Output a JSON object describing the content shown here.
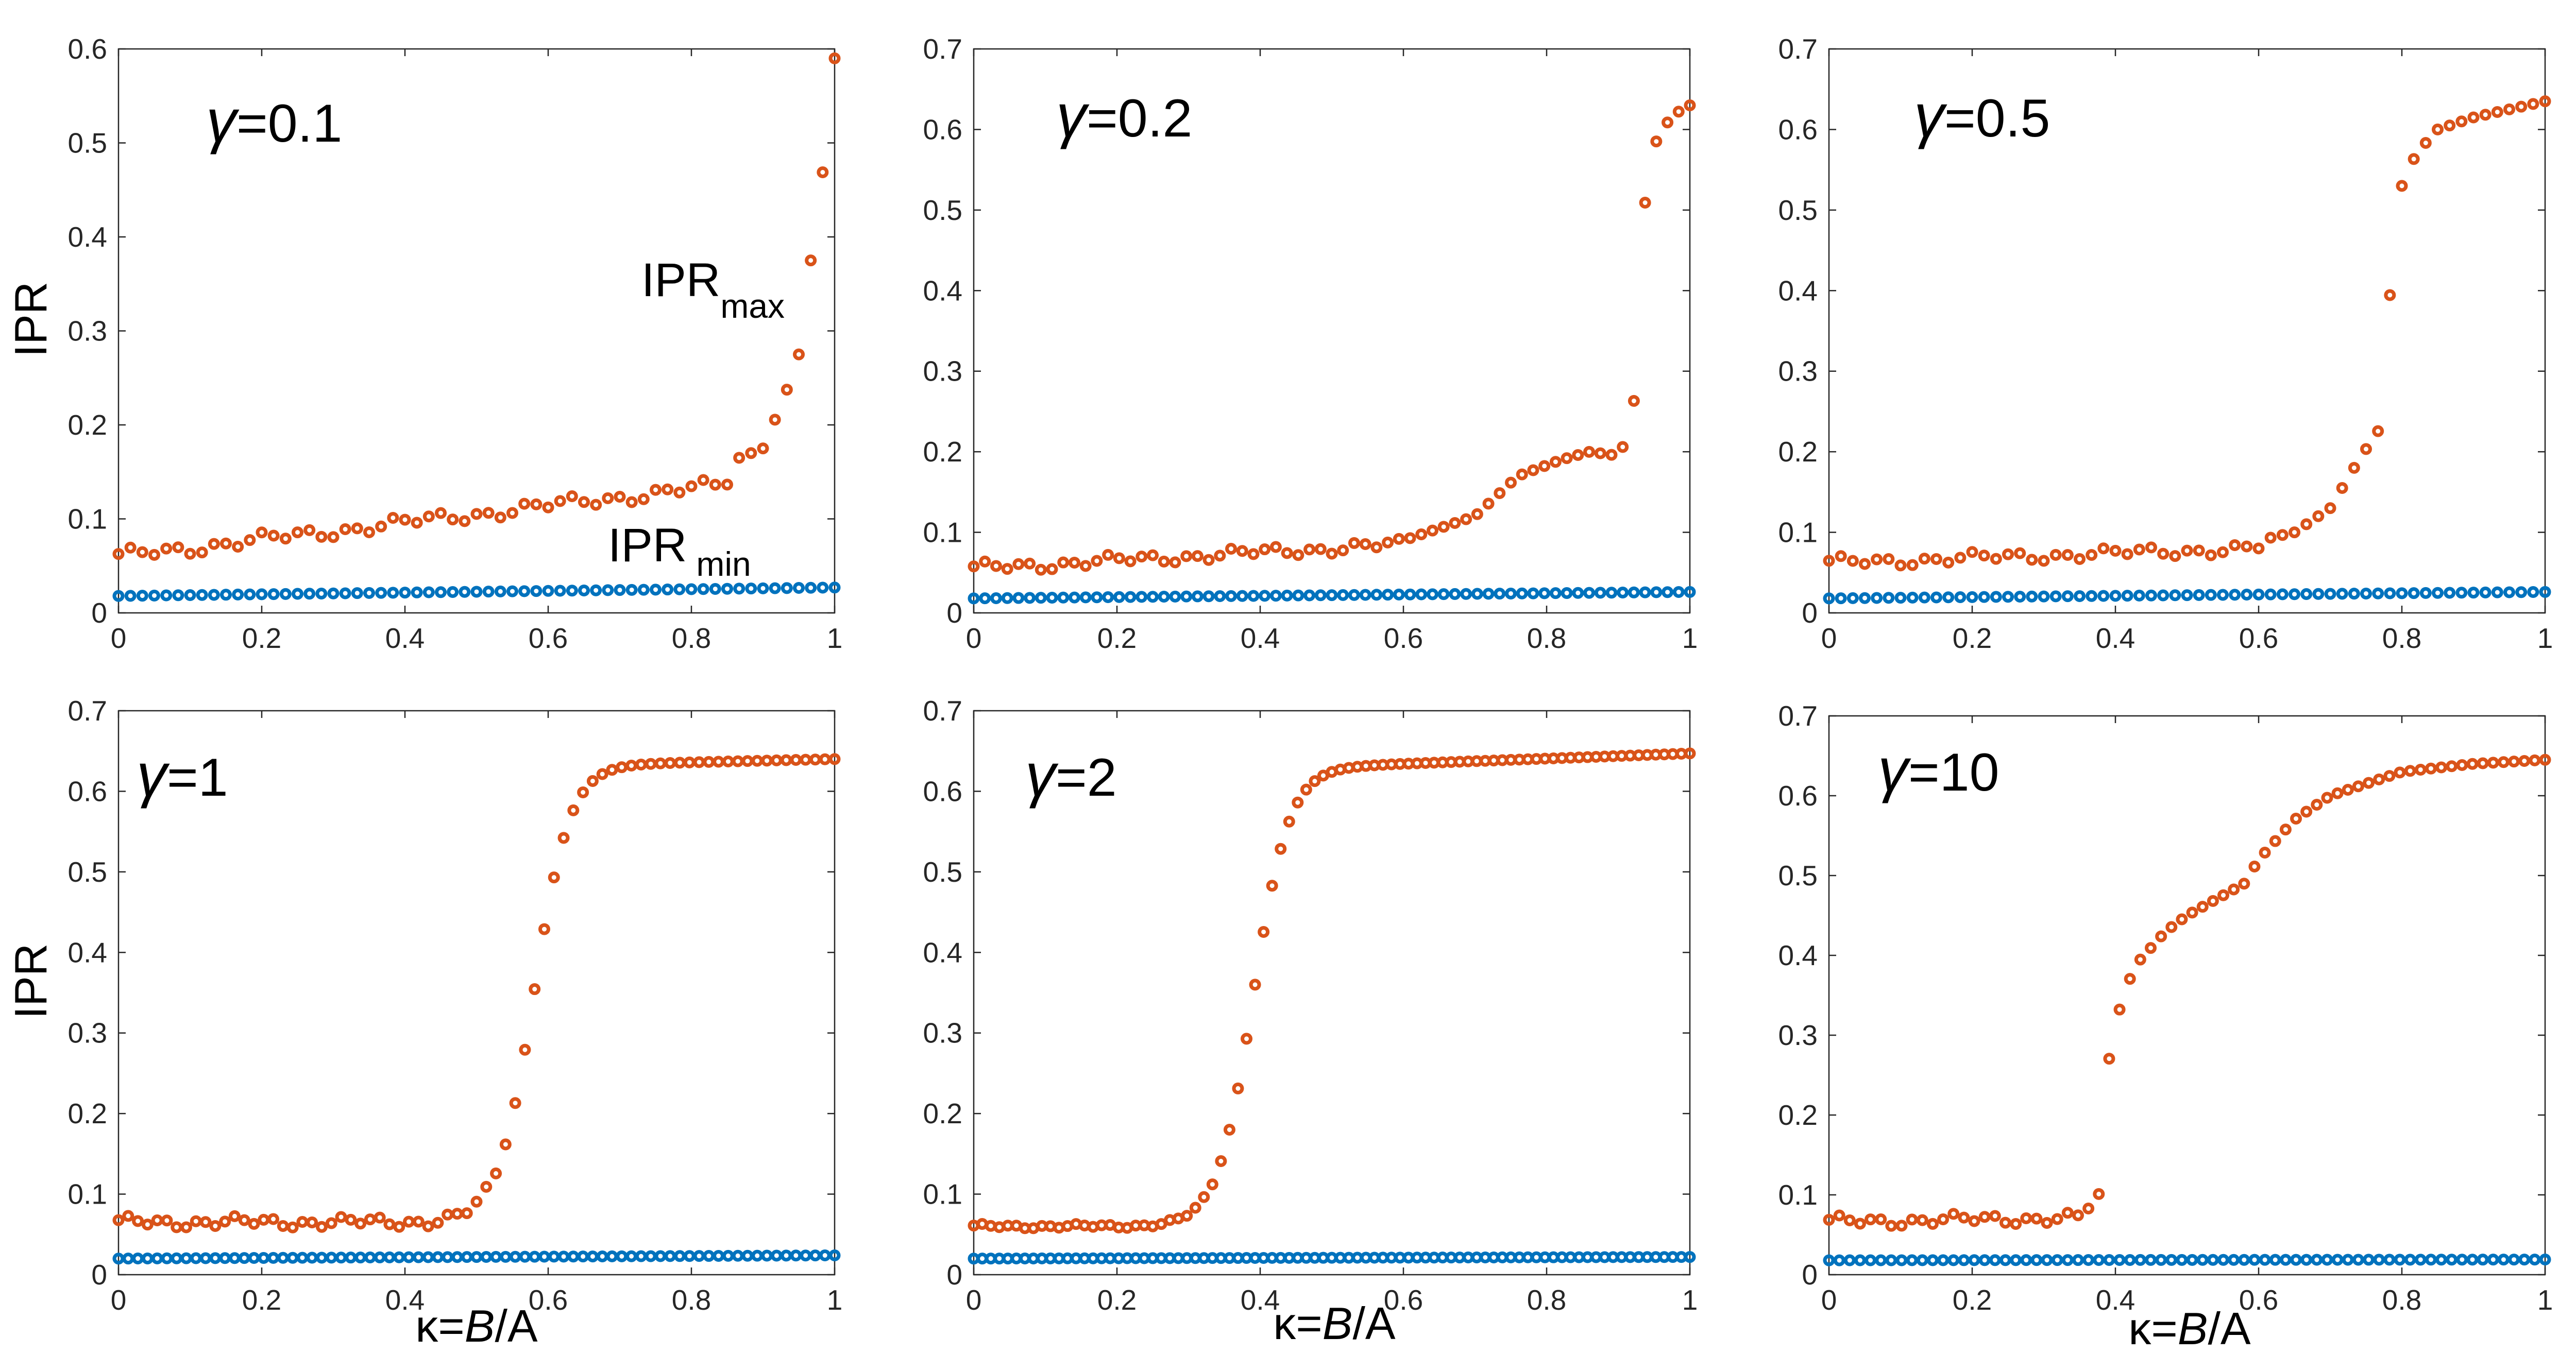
{
  "colors": {
    "max": "#D95319",
    "min": "#0072BD",
    "axis": "#262626"
  },
  "labels": {
    "ylabel": "IPR",
    "xlabel_kappa": "κ",
    "xlabel_eq": "=",
    "xlabel_b": "B",
    "xlabel_slash": "/A",
    "ipr_main": "IPR",
    "max_sub": "max",
    "min_sub": "min",
    "gamma_symbol": "γ"
  },
  "chart_data": [
    {
      "type": "scatter",
      "title": "=0.1",
      "xlim": [
        0,
        1
      ],
      "ylim": [
        0,
        0.6
      ],
      "xticks": [
        "0",
        "0.2",
        "0.4",
        "0.6",
        "0.8",
        "1"
      ],
      "yticks": [
        "0",
        "0.1",
        "0.2",
        "0.3",
        "0.4",
        "0.5",
        "0.6"
      ],
      "series": [
        {
          "name": "IPRmax",
          "curve": "flat",
          "n": 61,
          "base": 0.06,
          "slope": 0.09,
          "keys": [
            [
              0.85,
              0.16
            ],
            [
              0.9,
              0.175
            ],
            [
              0.93,
              0.23
            ],
            [
              0.95,
              0.275
            ],
            [
              0.97,
              0.395
            ],
            [
              0.985,
              0.478
            ],
            [
              1.0,
              0.59
            ]
          ]
        },
        {
          "name": "IPRmin",
          "curve": "line",
          "n": 61,
          "y0": 0.018,
          "y1": 0.027
        }
      ]
    },
    {
      "type": "scatter",
      "title": "=0.2",
      "xlim": [
        0,
        1
      ],
      "ylim": [
        0,
        0.7
      ],
      "xticks": [
        "0",
        "0.2",
        "0.4",
        "0.6",
        "0.8",
        "1"
      ],
      "yticks": [
        "0",
        "0.1",
        "0.2",
        "0.3",
        "0.4",
        "0.5",
        "0.6",
        "0.7"
      ],
      "series": [
        {
          "name": "IPRmax",
          "curve": "flat",
          "n": 65,
          "base": 0.055,
          "slope": 0.05,
          "keys": [
            [
              0.6,
              0.09
            ],
            [
              0.7,
              0.12
            ],
            [
              0.76,
              0.17
            ],
            [
              0.82,
              0.19
            ],
            [
              0.86,
              0.2
            ],
            [
              0.9,
              0.195
            ],
            [
              0.92,
              0.23
            ],
            [
              0.935,
              0.495
            ],
            [
              0.95,
              0.58
            ],
            [
              0.965,
              0.605
            ],
            [
              0.98,
              0.62
            ],
            [
              1.0,
              0.63
            ]
          ]
        },
        {
          "name": "IPRmin",
          "curve": "line",
          "n": 65,
          "y0": 0.018,
          "y1": 0.026
        }
      ]
    },
    {
      "type": "scatter",
      "title": "=0.5",
      "xlim": [
        0,
        1
      ],
      "ylim": [
        0,
        0.7
      ],
      "xticks": [
        "0",
        "0.2",
        "0.4",
        "0.6",
        "0.8",
        "1"
      ],
      "yticks": [
        "0",
        "0.1",
        "0.2",
        "0.3",
        "0.4",
        "0.5",
        "0.6",
        "0.7"
      ],
      "series": [
        {
          "name": "IPRmax",
          "curve": "flat",
          "n": 61,
          "base": 0.062,
          "slope": 0.03,
          "keys": [
            [
              0.6,
              0.09
            ],
            [
              0.65,
              0.1
            ],
            [
              0.7,
              0.13
            ],
            [
              0.74,
              0.19
            ],
            [
              0.77,
              0.23
            ],
            [
              0.785,
              0.415
            ],
            [
              0.8,
              0.53
            ],
            [
              0.82,
              0.57
            ],
            [
              0.85,
              0.6
            ],
            [
              0.9,
              0.615
            ],
            [
              1.0,
              0.635
            ]
          ]
        },
        {
          "name": "IPRmin",
          "curve": "line",
          "n": 61,
          "y0": 0.018,
          "y1": 0.026
        }
      ]
    },
    {
      "type": "scatter",
      "title": "=1",
      "xlim": [
        0,
        1
      ],
      "ylim": [
        0,
        0.7
      ],
      "xticks": [
        "0",
        "0.2",
        "0.4",
        "0.6",
        "0.8",
        "1"
      ],
      "yticks": [
        "0",
        "0.1",
        "0.2",
        "0.3",
        "0.4",
        "0.5",
        "0.6",
        "0.7"
      ],
      "series": [
        {
          "name": "IPRmax",
          "curve": "sigmoid",
          "n": 75,
          "y0": 0.065,
          "y1": 0.62,
          "x0": 0.58,
          "w": 0.025,
          "tail": 0.02,
          "jitter": 0.008
        },
        {
          "name": "IPRmin",
          "curve": "line",
          "n": 75,
          "y0": 0.02,
          "y1": 0.024
        }
      ]
    },
    {
      "type": "scatter",
      "title": "=2",
      "xlim": [
        0,
        1
      ],
      "ylim": [
        0,
        0.7
      ],
      "xticks": [
        "0",
        "0.2",
        "0.4",
        "0.6",
        "0.8",
        "1"
      ],
      "yticks": [
        "0",
        "0.1",
        "0.2",
        "0.3",
        "0.4",
        "0.5",
        "0.6",
        "0.7"
      ],
      "series": [
        {
          "name": "IPRmax",
          "curve": "sigmoid",
          "n": 85,
          "y0": 0.06,
          "y1": 0.615,
          "x0": 0.39,
          "w": 0.025,
          "tail": 0.032,
          "jitter": 0.003
        },
        {
          "name": "IPRmin",
          "curve": "line",
          "n": 85,
          "y0": 0.02,
          "y1": 0.022
        }
      ]
    },
    {
      "type": "scatter",
      "title": "=10",
      "xlim": [
        0,
        1
      ],
      "ylim": [
        0,
        0.7
      ],
      "xticks": [
        "0",
        "0.2",
        "0.4",
        "0.6",
        "0.8",
        "1"
      ],
      "yticks": [
        "0",
        "0.1",
        "0.2",
        "0.3",
        "0.4",
        "0.5",
        "0.6",
        "0.7"
      ],
      "series": [
        {
          "name": "IPRmax",
          "curve": "flat",
          "n": 70,
          "base": 0.066,
          "slope": 0.015,
          "keys": [
            [
              0.36,
              0.08
            ],
            [
              0.38,
              0.105
            ],
            [
              0.39,
              0.265
            ],
            [
              0.41,
              0.35
            ],
            [
              0.43,
              0.39
            ],
            [
              0.47,
              0.43
            ],
            [
              0.5,
              0.45
            ],
            [
              0.55,
              0.475
            ],
            [
              0.58,
              0.49
            ],
            [
              0.6,
              0.52
            ],
            [
              0.65,
              0.57
            ],
            [
              0.7,
              0.6
            ],
            [
              0.8,
              0.63
            ],
            [
              0.9,
              0.64
            ],
            [
              1.0,
              0.645
            ]
          ]
        },
        {
          "name": "IPRmin",
          "curve": "line",
          "n": 70,
          "y0": 0.018,
          "y1": 0.019
        }
      ]
    }
  ]
}
